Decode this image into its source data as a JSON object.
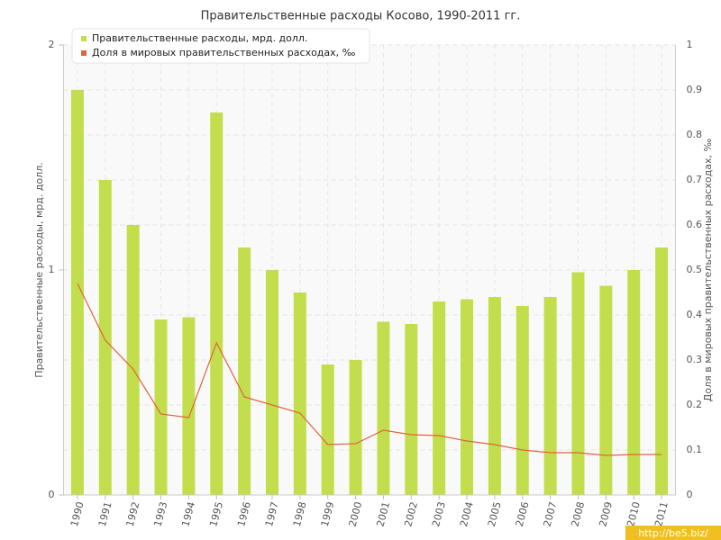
{
  "chart_data": {
    "type": "bar_line",
    "title": "Правительственные расходы Косово, 1990-2011 гг.",
    "y_label": "Правительственные расходы, мрд. долл.",
    "y2_label": "Доля в мировых правительственных расходах, ‰",
    "watermark": "http://be5.biz/",
    "categories": [
      "1990",
      "1991",
      "1992",
      "1993",
      "1994",
      "1995",
      "1996",
      "1997",
      "1998",
      "1999",
      "2000",
      "2001",
      "2002",
      "2003",
      "2004",
      "2005",
      "2006",
      "2007",
      "2008",
      "2009",
      "2010",
      "2011"
    ],
    "series": [
      {
        "name": "Правительственные расходы, мрд. долл.",
        "type": "bar",
        "color": "#c2de4c",
        "values": [
          1.8,
          1.4,
          1.2,
          0.78,
          0.79,
          1.7,
          1.1,
          1.0,
          0.9,
          0.58,
          0.6,
          0.77,
          0.76,
          0.86,
          0.87,
          0.88,
          0.84,
          0.88,
          0.99,
          0.93,
          1.0,
          1.1
        ]
      },
      {
        "name": "Доля в мировых правительственных расходах, ‰",
        "type": "line",
        "axis": "y2",
        "color": "#e0643c",
        "values": [
          0.47,
          0.344,
          0.28,
          0.18,
          0.172,
          0.338,
          0.218,
          0.2,
          0.182,
          0.112,
          0.114,
          0.144,
          0.134,
          0.132,
          0.12,
          0.112,
          0.1,
          0.094,
          0.094,
          0.088,
          0.09,
          0.09
        ]
      }
    ],
    "ylim": [
      0,
      2
    ],
    "yticks": [
      0,
      1,
      2
    ],
    "y2lim": [
      0,
      1
    ],
    "y2ticks": [
      0,
      0.1,
      0.2,
      0.3,
      0.4,
      0.5,
      0.6,
      0.7,
      0.8,
      0.9,
      1
    ],
    "grid": true,
    "legend": "top-left"
  }
}
